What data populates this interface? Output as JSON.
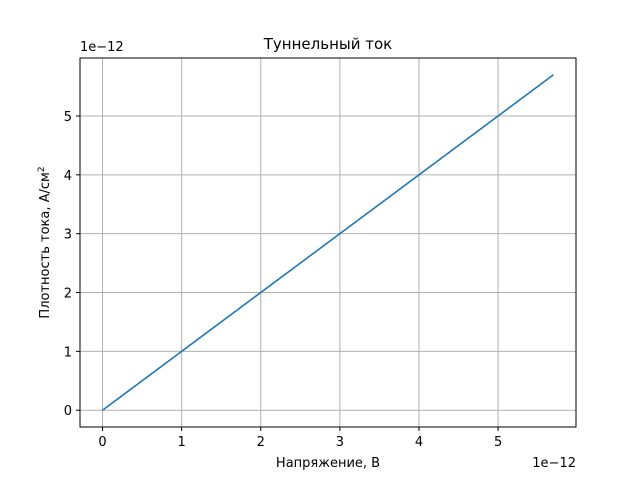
{
  "chart_data": {
    "type": "line",
    "title": "Туннельный ток",
    "xlabel": "Напряжение, В",
    "ylabel_main": "Плотность тока, А/см",
    "ylabel_sup": "2",
    "x_offset_text": "1e−12",
    "y_offset_text": "1e−12",
    "xlim": [
      -0.285,
      5.985
    ],
    "ylim": [
      -0.285,
      5.985
    ],
    "xticks": [
      0,
      1,
      2,
      3,
      4,
      5
    ],
    "yticks": [
      0,
      1,
      2,
      3,
      4,
      5
    ],
    "x_tick_labels": [
      "0",
      "1",
      "2",
      "3",
      "4",
      "5"
    ],
    "y_tick_labels": [
      "0",
      "1",
      "2",
      "3",
      "4",
      "5"
    ],
    "grid": true,
    "series": [
      {
        "color": "#1f77b4",
        "x": [
          0,
          5.7
        ],
        "y": [
          0,
          5.7
        ]
      }
    ]
  }
}
